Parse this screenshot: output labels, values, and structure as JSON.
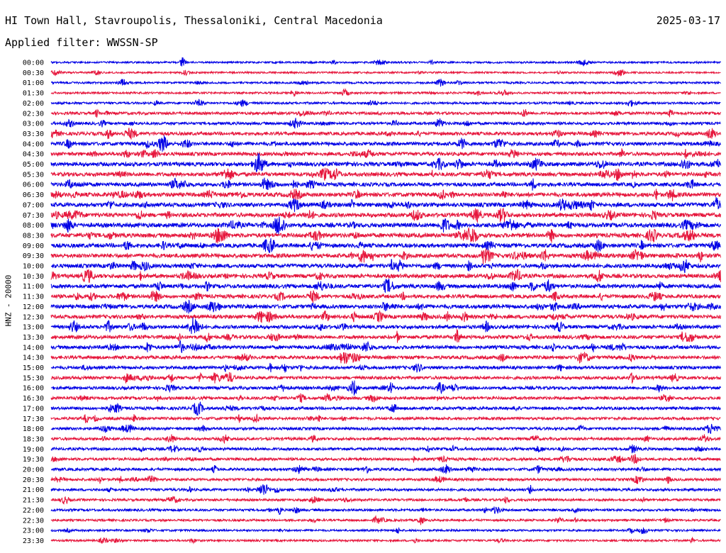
{
  "header": {
    "station": "HI Town Hall, Stavroupolis, Thessaloniki, Central Macedonia",
    "date": "2025-03-17",
    "filter_label": "Applied filter:",
    "filter_value": "WWSSN-SP"
  },
  "colors": {
    "trace_a": "#0000e6",
    "trace_b": "#e6163c",
    "background": "#ffffff",
    "text": "#000000"
  },
  "chart_data": {
    "type": "line",
    "ylabel": "HNZ - 20000",
    "title": "",
    "xlabel": "",
    "grid": false,
    "categories": [
      "00:00",
      "00:30",
      "01:00",
      "01:30",
      "02:00",
      "02:30",
      "03:00",
      "03:30",
      "04:00",
      "04:30",
      "05:00",
      "05:30",
      "06:00",
      "06:30",
      "07:00",
      "07:30",
      "08:00",
      "08:30",
      "09:00",
      "09:30",
      "10:00",
      "10:30",
      "11:00",
      "11:30",
      "12:00",
      "12:30",
      "13:00",
      "13:30",
      "14:00",
      "14:30",
      "15:00",
      "15:30",
      "16:00",
      "16:30",
      "17:00",
      "17:30",
      "18:00",
      "18:30",
      "19:00",
      "19:30",
      "20:00",
      "20:30",
      "21:00",
      "21:30",
      "22:00",
      "22:30",
      "23:00",
      "23:30"
    ],
    "series": [
      {
        "values": [
          0.25,
          0.25,
          0.3,
          0.3,
          0.35,
          0.5,
          0.5,
          0.65,
          0.7,
          0.7,
          0.8,
          0.8,
          0.75,
          0.85,
          0.85,
          0.85,
          0.9,
          0.9,
          0.85,
          0.85,
          0.8,
          0.8,
          0.8,
          0.75,
          0.8,
          0.75,
          0.7,
          0.7,
          0.7,
          0.65,
          0.6,
          0.6,
          0.6,
          0.55,
          0.55,
          0.5,
          0.5,
          0.5,
          0.5,
          0.5,
          0.5,
          0.45,
          0.45,
          0.4,
          0.4,
          0.35,
          0.3,
          0.3
        ]
      }
    ]
  }
}
